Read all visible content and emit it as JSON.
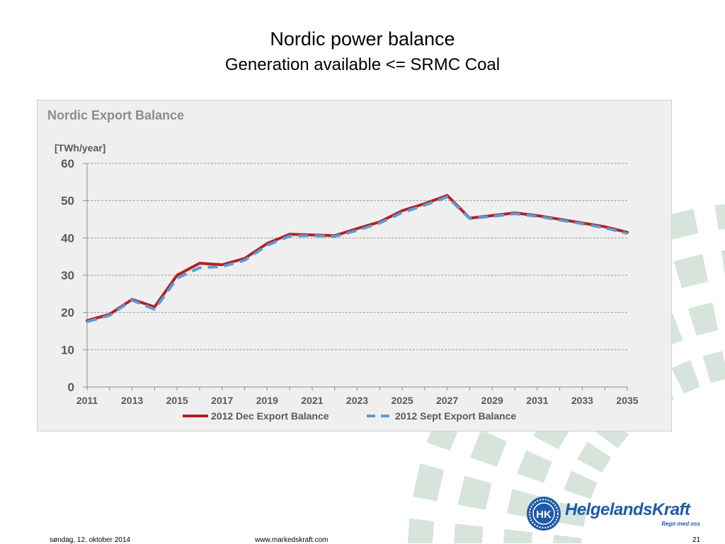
{
  "slide": {
    "title": "Nordic power balance",
    "subtitle": "Generation available <= SRMC Coal"
  },
  "chart_data": {
    "type": "line",
    "title": "Nordic Export Balance",
    "ylabel": "[TWh/year]",
    "xlabel": "",
    "ylim": [
      0,
      60
    ],
    "yticks": [
      0,
      10,
      20,
      30,
      40,
      50,
      60
    ],
    "x": [
      2011,
      2012,
      2013,
      2014,
      2015,
      2016,
      2017,
      2018,
      2019,
      2020,
      2021,
      2022,
      2023,
      2024,
      2025,
      2026,
      2027,
      2028,
      2029,
      2030,
      2031,
      2032,
      2033,
      2034,
      2035
    ],
    "xtick_labels": [
      "2011",
      "2013",
      "2015",
      "2017",
      "2019",
      "2021",
      "2023",
      "2025",
      "2027",
      "2029",
      "2031",
      "2033",
      "2035"
    ],
    "grid": "horizontal dashed",
    "legend_position": "bottom",
    "series": [
      {
        "name": "2012 Dec Export Balance",
        "color": "#b22222",
        "style": "solid",
        "values": [
          17.8,
          19.5,
          23.5,
          21.5,
          30,
          33.2,
          32.8,
          34.5,
          38.5,
          41,
          40.8,
          40.6,
          42.5,
          44.3,
          47.3,
          49.2,
          51.4,
          45.3,
          46,
          46.7,
          46,
          45,
          44,
          43,
          41.5
        ]
      },
      {
        "name": "2012 Sept Export Balance",
        "color": "#5b9bd5",
        "style": "dashed",
        "values": [
          17.5,
          19.2,
          23.3,
          20.8,
          29.2,
          32,
          32.3,
          34,
          38,
          40.5,
          40.6,
          40.4,
          42,
          44,
          46.8,
          48.8,
          51,
          45.2,
          45.8,
          46.5,
          45.8,
          44.8,
          43.8,
          42.7,
          41.2
        ]
      }
    ]
  },
  "logo": {
    "monogram": "HK",
    "name": "HelgelandsKraft",
    "tagline": "Regn med oss",
    "color": "#1f5aa6"
  },
  "footer": {
    "date": "søndag, 12. oktober 2014",
    "url": "www.markedskraft.com",
    "page": "21"
  },
  "colors": {
    "decoration": "#d6e4dc",
    "chart_background": "#efefef"
  }
}
